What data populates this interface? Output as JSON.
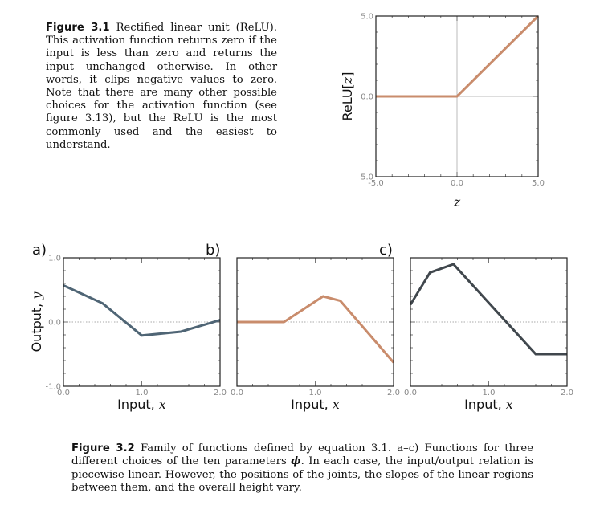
{
  "figure_3_1": {
    "label": "Figure 3.1",
    "text": "Rectified linear unit (ReLU). This activation function returns zero if the input is less than zero and returns the input unchanged otherwise. In other words, it clips negative values to zero. Note that there are many other possible choices for the activation function (see figure 3.13), but the ReLU is the most commonly used and the easiest to understand."
  },
  "figure_3_2": {
    "label": "Figure 3.2",
    "text_a": "Family of functions defined by equation 3.1. a–c) Functions for three different choices of the ten parameters ",
    "phi": "ϕ",
    "text_b": ". In each case, the input/output relation is piecewise linear. However, the positions of the joints, the slopes of the linear regions between them, and the overall height vary."
  },
  "colors": {
    "relu": "#c98c6c",
    "a": "#4f6575",
    "b": "#c98c6c",
    "c": "#40474d",
    "zero_line": "#bbbbbb"
  },
  "chart_data": [
    {
      "type": "line",
      "xlabel": "z",
      "ylabel_prefix": "ReLU",
      "ylabel_arg": "z",
      "xlim": [
        -5,
        5
      ],
      "ylim": [
        -5,
        5
      ],
      "xticks": [
        "-5.0",
        "0.0",
        "5.0"
      ],
      "yticks": [
        "5.0",
        "0.0",
        "-5.0"
      ],
      "x": [
        -5,
        0,
        5
      ],
      "y": [
        0,
        0,
        5
      ]
    },
    {
      "type": "line",
      "panel": "a)",
      "xlabel_prefix": "Input, ",
      "xlabel_var": "x",
      "ylabel_prefix": "Output, ",
      "ylabel_var": "y",
      "xlim": [
        0,
        2
      ],
      "ylim": [
        -1,
        1
      ],
      "xticks": [
        "0.0",
        "1.0",
        "2.0"
      ],
      "yticks": [
        "1.0",
        "0.0",
        "-1.0"
      ],
      "x": [
        0,
        0.5,
        1.0,
        1.5,
        2.0
      ],
      "y": [
        0.57,
        0.29,
        -0.21,
        -0.15,
        0.03
      ]
    },
    {
      "type": "line",
      "panel": "b)",
      "xlabel_prefix": "Input, ",
      "xlabel_var": "x",
      "xlim": [
        0,
        2
      ],
      "ylim": [
        -1,
        1
      ],
      "xticks": [
        "0.0",
        "1.0",
        "2.0"
      ],
      "x": [
        0,
        0.6,
        1.1,
        1.32,
        2.0
      ],
      "y": [
        0,
        0,
        0.4,
        0.33,
        -0.63
      ]
    },
    {
      "type": "line",
      "panel": "c)",
      "xlabel_prefix": "Input, ",
      "xlabel_var": "x",
      "xlim": [
        0,
        2
      ],
      "ylim": [
        -1,
        1
      ],
      "xticks": [
        "0.0",
        "1.0",
        "2.0"
      ],
      "x": [
        0,
        0.25,
        0.55,
        1.6,
        2.0
      ],
      "y": [
        0.27,
        0.77,
        0.9,
        -0.5,
        -0.5
      ]
    }
  ]
}
